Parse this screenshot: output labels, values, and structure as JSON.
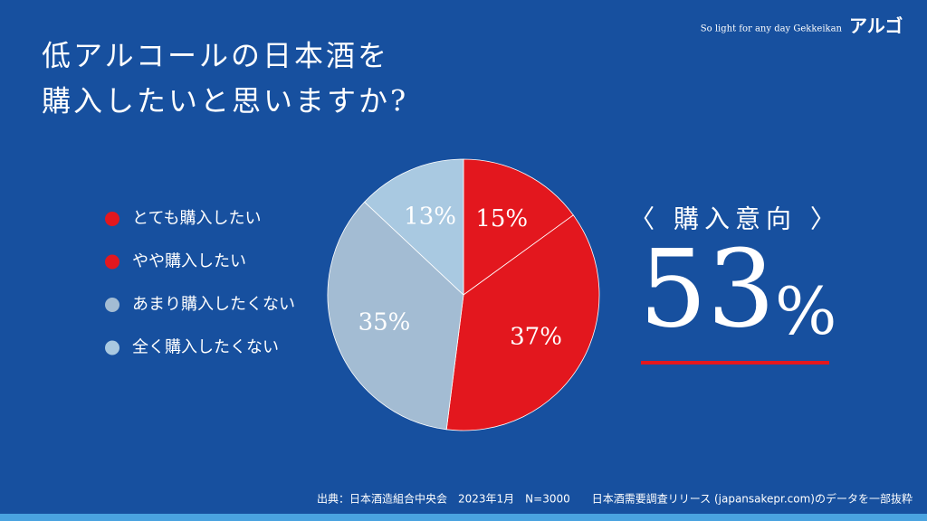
{
  "brand": {
    "tagline": "So light for any day Gekkeikan",
    "name": "アルゴ"
  },
  "title": [
    "低アルコールの日本酒を",
    "購入したいと思いますか?"
  ],
  "chart_data": {
    "type": "pie",
    "categories": [
      "とても購入したい",
      "やや購入したい",
      "あまり購入したくない",
      "全く購入したくない"
    ],
    "values": [
      15,
      37,
      35,
      13
    ],
    "value_labels": [
      "15%",
      "37%",
      "35%",
      "13%"
    ],
    "colors": [
      "#e3171e",
      "#e3171e",
      "#a3bcd3",
      "#a9c9e1"
    ],
    "legend": "left"
  },
  "callout": {
    "title": "〈 購入意向 〉",
    "value": "53",
    "unit": "%"
  },
  "footnote": "出典：日本酒造組合中央会　2023年1月　N=3000　　日本酒需要調査リリース (japansakepr.com)のデータを一部抜粋"
}
